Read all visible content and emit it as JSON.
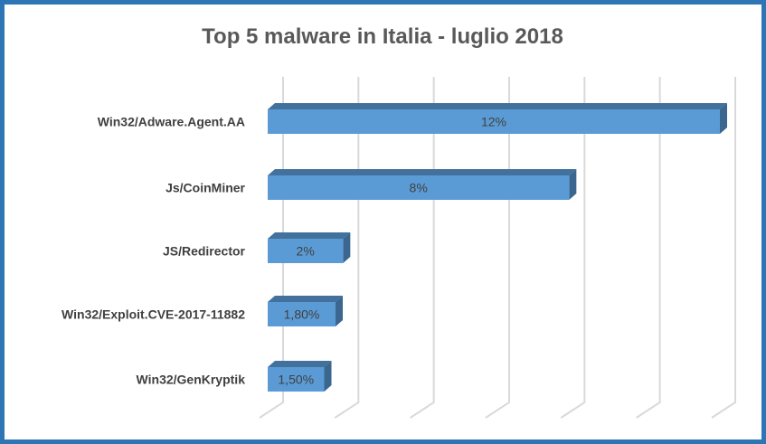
{
  "chart_data": {
    "type": "bar",
    "orientation": "horizontal",
    "style": "3d",
    "title": "Top 5 malware in Italia - luglio 2018",
    "categories": [
      "Win32/Adware.Agent.AA",
      "Js/CoinMiner",
      "JS/Redirector",
      "Win32/Exploit.CVE-2017-11882",
      "Win32/GenKryptik"
    ],
    "values": [
      12,
      8,
      2,
      1.8,
      1.5
    ],
    "data_labels": [
      "12%",
      "8%",
      "2%",
      "1,80%",
      "1,50%"
    ],
    "unit": "%",
    "xlim": [
      0,
      12
    ],
    "grid_step": 2,
    "grid": true,
    "legend": "none",
    "colors": {
      "bar_front": "#5b9bd5",
      "bar_top": "#41719c",
      "bar_side": "#3a6690",
      "grid": "#d9d9d9",
      "border": "#2e75b6",
      "title": "#595959",
      "label": "#404040"
    }
  }
}
